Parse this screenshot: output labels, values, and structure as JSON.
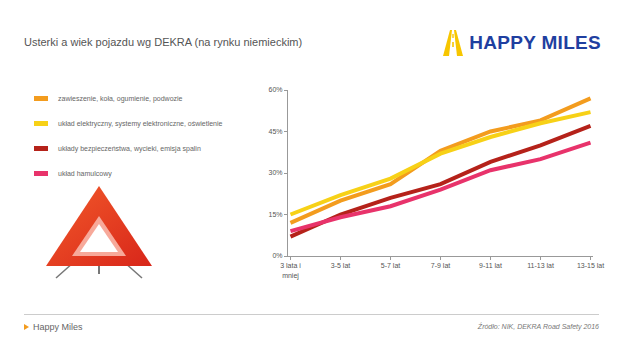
{
  "chart_data": {
    "type": "line",
    "title": "Usterki a wiek pojazdu wg DEKRA (na rynku niemieckim)",
    "categories": [
      "3 lata i mniej",
      "3-5 lat",
      "5-7 lat",
      "7-9 lat",
      "9-11 lat",
      "11-13 lat",
      "13-15 lat"
    ],
    "series": [
      {
        "name": "zawieszenie, koła, ogumienie, podwozie",
        "color": "#f39c1e",
        "values": [
          12,
          20,
          26,
          38,
          45,
          49,
          57
        ]
      },
      {
        "name": "układ elektryczny, systemy elektroniczne, oświetlenie",
        "color": "#f7d117",
        "values": [
          15,
          22,
          28,
          37,
          43,
          48,
          52
        ]
      },
      {
        "name": "układy bezpieczeństwa, wycieki, emisja spalin",
        "color": "#b5221a",
        "values": [
          7,
          15,
          21,
          26,
          34,
          40,
          47
        ]
      },
      {
        "name": "układ hamulcowy",
        "color": "#e8336b",
        "values": [
          9,
          14,
          18,
          24,
          31,
          35,
          41
        ]
      }
    ],
    "ylim": [
      0,
      60
    ],
    "yticks": [
      {
        "value": 0,
        "label": "0%"
      },
      {
        "value": 15,
        "label": "15%"
      },
      {
        "value": 30,
        "label": "30%"
      },
      {
        "value": 45,
        "label": "45%"
      },
      {
        "value": 60,
        "label": "60%"
      }
    ],
    "grid": false
  },
  "header": {
    "logo": "HAPPY MILES"
  },
  "footer": {
    "left": "Happy Miles",
    "source": "Źródło: NIK, DEKRA Road Safety 2016"
  }
}
